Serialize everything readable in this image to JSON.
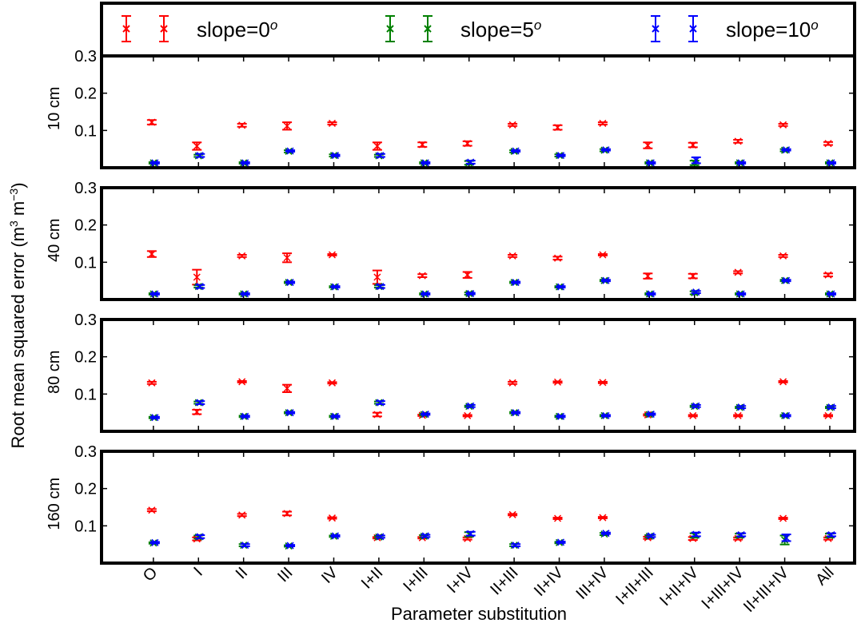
{
  "chart_data": {
    "type": "scatter",
    "xlabel": "Parameter substitution",
    "ylabel": "Root mean squared error (m",
    "ylabel_sup1": "3",
    "ylabel_mid": " m",
    "ylabel_sup2": "−3",
    "ylabel_end": ")",
    "categories": [
      "O",
      "I",
      "II",
      "III",
      "IV",
      "I+II",
      "I+III",
      "I+IV",
      "II+III",
      "II+IV",
      "III+IV",
      "I+II+III",
      "I+II+IV",
      "I+III+IV",
      "II+III+IV",
      "All"
    ],
    "ylim": [
      0,
      0.3
    ],
    "yticks": [
      "0.3",
      "0.2",
      "0.1"
    ],
    "legend": {
      "placement": "top",
      "entries": [
        {
          "label": "slope=0",
          "sup": "o",
          "color": "#ff0000"
        },
        {
          "label": "slope=5",
          "sup": "o",
          "color": "#008000"
        },
        {
          "label": "slope=10",
          "sup": "o",
          "color": "#0000ff"
        }
      ]
    },
    "panels": [
      {
        "label": "10 cm",
        "series": [
          {
            "color": "#ff0000",
            "values": [
              0.122,
              0.058,
              0.114,
              0.112,
              0.119,
              0.058,
              0.062,
              0.065,
              0.115,
              0.108,
              0.119,
              0.06,
              0.061,
              0.071,
              0.115,
              0.065
            ],
            "errors": [
              0.006,
              0.01,
              0.004,
              0.01,
              0.003,
              0.01,
              0.006,
              0.006,
              0.003,
              0.006,
              0.003,
              0.008,
              0.006,
              0.004,
              0.003,
              0.004
            ]
          },
          {
            "color": "#008000",
            "values": [
              0.013,
              0.032,
              0.013,
              0.044,
              0.033,
              0.032,
              0.013,
              0.013,
              0.044,
              0.033,
              0.047,
              0.013,
              0.013,
              0.013,
              0.047,
              0.013
            ],
            "errors": [
              0.002,
              0.003,
              0.002,
              0.003,
              0.003,
              0.003,
              0.002,
              0.005,
              0.003,
              0.003,
              0.003,
              0.002,
              0.006,
              0.002,
              0.003,
              0.002
            ]
          },
          {
            "color": "#0000ff",
            "values": [
              0.013,
              0.033,
              0.013,
              0.045,
              0.033,
              0.033,
              0.013,
              0.015,
              0.045,
              0.033,
              0.048,
              0.013,
              0.02,
              0.013,
              0.048,
              0.013
            ],
            "errors": [
              0.002,
              0.004,
              0.002,
              0.002,
              0.002,
              0.004,
              0.002,
              0.004,
              0.002,
              0.002,
              0.002,
              0.002,
              0.008,
              0.002,
              0.002,
              0.002
            ]
          }
        ]
      },
      {
        "label": "40 cm",
        "series": [
          {
            "color": "#ff0000",
            "values": [
              0.122,
              0.06,
              0.117,
              0.112,
              0.12,
              0.06,
              0.064,
              0.066,
              0.117,
              0.111,
              0.12,
              0.063,
              0.063,
              0.073,
              0.117,
              0.066
            ],
            "errors": [
              0.008,
              0.02,
              0.003,
              0.012,
              0.002,
              0.018,
              0.004,
              0.008,
              0.003,
              0.004,
              0.002,
              0.007,
              0.006,
              0.003,
              0.003,
              0.004
            ]
          },
          {
            "color": "#008000",
            "values": [
              0.015,
              0.035,
              0.015,
              0.046,
              0.034,
              0.035,
              0.015,
              0.016,
              0.046,
              0.034,
              0.051,
              0.015,
              0.018,
              0.015,
              0.051,
              0.015
            ],
            "errors": [
              0.002,
              0.003,
              0.002,
              0.002,
              0.002,
              0.003,
              0.002,
              0.003,
              0.002,
              0.002,
              0.002,
              0.002,
              0.004,
              0.002,
              0.002,
              0.002
            ]
          },
          {
            "color": "#0000ff",
            "values": [
              0.015,
              0.035,
              0.015,
              0.046,
              0.034,
              0.035,
              0.015,
              0.016,
              0.046,
              0.034,
              0.051,
              0.015,
              0.02,
              0.015,
              0.051,
              0.015
            ],
            "errors": [
              0.002,
              0.004,
              0.002,
              0.002,
              0.002,
              0.004,
              0.002,
              0.002,
              0.002,
              0.002,
              0.002,
              0.002,
              0.003,
              0.002,
              0.002,
              0.002
            ]
          }
        ]
      },
      {
        "label": "80 cm",
        "series": [
          {
            "color": "#ff0000",
            "values": [
              0.13,
              0.052,
              0.133,
              0.115,
              0.13,
              0.045,
              0.043,
              0.042,
              0.13,
              0.132,
              0.131,
              0.044,
              0.042,
              0.042,
              0.133,
              0.042
            ],
            "errors": [
              0.003,
              0.006,
              0.002,
              0.01,
              0.002,
              0.005,
              0.002,
              0.002,
              0.003,
              0.002,
              0.002,
              0.002,
              0.002,
              0.002,
              0.002,
              0.002
            ]
          },
          {
            "color": "#008000",
            "values": [
              0.037,
              0.077,
              0.04,
              0.05,
              0.04,
              0.077,
              0.045,
              0.067,
              0.05,
              0.04,
              0.042,
              0.045,
              0.067,
              0.064,
              0.042,
              0.064
            ],
            "errors": [
              0.002,
              0.003,
              0.002,
              0.002,
              0.002,
              0.003,
              0.002,
              0.002,
              0.002,
              0.002,
              0.002,
              0.002,
              0.002,
              0.002,
              0.002,
              0.002
            ]
          },
          {
            "color": "#0000ff",
            "values": [
              0.037,
              0.077,
              0.04,
              0.05,
              0.04,
              0.077,
              0.046,
              0.068,
              0.05,
              0.04,
              0.042,
              0.046,
              0.068,
              0.065,
              0.042,
              0.065
            ],
            "errors": [
              0.002,
              0.004,
              0.002,
              0.002,
              0.002,
              0.004,
              0.002,
              0.003,
              0.002,
              0.002,
              0.002,
              0.002,
              0.003,
              0.003,
              0.002,
              0.003
            ]
          }
        ]
      },
      {
        "label": "160 cm",
        "series": [
          {
            "color": "#ff0000",
            "values": [
              0.142,
              0.065,
              0.129,
              0.133,
              0.121,
              0.068,
              0.068,
              0.066,
              0.13,
              0.12,
              0.122,
              0.068,
              0.066,
              0.066,
              0.12,
              0.066
            ],
            "errors": [
              0.003,
              0.004,
              0.003,
              0.005,
              0.002,
              0.002,
              0.002,
              0.003,
              0.002,
              0.002,
              0.002,
              0.003,
              0.004,
              0.003,
              0.002,
              0.003
            ]
          },
          {
            "color": "#008000",
            "values": [
              0.054,
              0.07,
              0.048,
              0.046,
              0.072,
              0.07,
              0.072,
              0.077,
              0.048,
              0.055,
              0.078,
              0.072,
              0.074,
              0.074,
              0.062,
              0.074
            ],
            "errors": [
              0.002,
              0.004,
              0.003,
              0.002,
              0.002,
              0.003,
              0.003,
              0.006,
              0.003,
              0.002,
              0.003,
              0.003,
              0.006,
              0.005,
              0.012,
              0.005
            ]
          },
          {
            "color": "#0000ff",
            "values": [
              0.055,
              0.071,
              0.048,
              0.047,
              0.073,
              0.071,
              0.073,
              0.079,
              0.048,
              0.056,
              0.08,
              0.073,
              0.077,
              0.076,
              0.068,
              0.076
            ],
            "errors": [
              0.002,
              0.004,
              0.003,
              0.002,
              0.002,
              0.003,
              0.003,
              0.005,
              0.003,
              0.002,
              0.002,
              0.003,
              0.005,
              0.004,
              0.009,
              0.004
            ]
          }
        ]
      }
    ]
  }
}
